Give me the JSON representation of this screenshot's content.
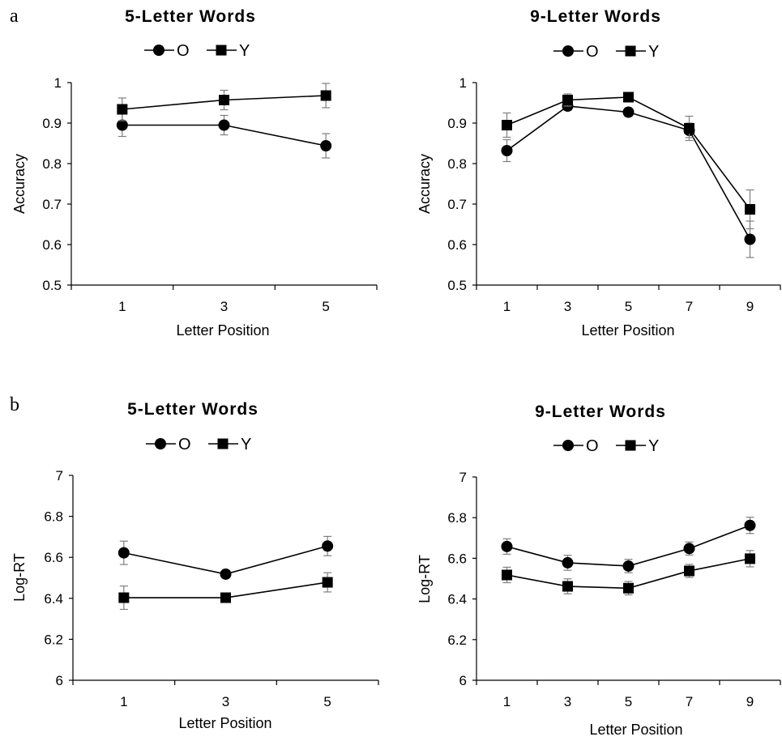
{
  "panel_labels": [
    "a",
    "b"
  ],
  "colors": {
    "ink": "#000000",
    "errorbar": "#7f7f7f",
    "axis": "#000000"
  },
  "chart_data": [
    {
      "type": "line",
      "panel": "a",
      "title": "5-Letter Words",
      "xlabel": "Letter Position",
      "ylabel": "Accuracy",
      "categories": [
        "1",
        "3",
        "5"
      ],
      "ylim": [
        0.5,
        1
      ],
      "yticks": [
        "0.5",
        "0.6",
        "0.7",
        "0.8",
        "0.9",
        "1"
      ],
      "legend_position": "top",
      "grid": false,
      "series": [
        {
          "name": "O",
          "marker": "circle",
          "values": [
            0.895,
            0.895,
            0.844
          ],
          "errors": [
            0.028,
            0.024,
            0.03
          ]
        },
        {
          "name": "Y",
          "marker": "square",
          "values": [
            0.934,
            0.957,
            0.968
          ],
          "errors": [
            0.028,
            0.024,
            0.03
          ]
        }
      ]
    },
    {
      "type": "line",
      "panel": "a",
      "title": "9-Letter Words",
      "xlabel": "Letter Position",
      "ylabel": "Accuracy",
      "categories": [
        "1",
        "3",
        "5",
        "7",
        "9"
      ],
      "ylim": [
        0.5,
        1
      ],
      "yticks": [
        "0.5",
        "0.6",
        "0.7",
        "0.8",
        "0.9",
        "1"
      ],
      "legend_position": "top",
      "grid": false,
      "series": [
        {
          "name": "O",
          "marker": "circle",
          "values": [
            0.832,
            0.942,
            0.927,
            0.882,
            0.613
          ],
          "errors": [
            0.027,
            0.01,
            0.01,
            0.018,
            0.045
          ]
        },
        {
          "name": "Y",
          "marker": "square",
          "values": [
            0.895,
            0.957,
            0.964,
            0.887,
            0.687
          ],
          "errors": [
            0.03,
            0.015,
            0.01,
            0.03,
            0.048
          ]
        }
      ]
    },
    {
      "type": "line",
      "panel": "b",
      "title": "5-Letter Words",
      "xlabel": "Letter Position",
      "ylabel": "Log-RT",
      "categories": [
        "1",
        "3",
        "5"
      ],
      "ylim": [
        6,
        7
      ],
      "yticks": [
        "6",
        "6.2",
        "6.4",
        "6.6",
        "6.8",
        "7"
      ],
      "legend_position": "top",
      "grid": false,
      "series": [
        {
          "name": "O",
          "marker": "circle",
          "values": [
            6.622,
            6.518,
            6.655
          ],
          "errors": [
            0.057,
            0.018,
            0.047
          ]
        },
        {
          "name": "Y",
          "marker": "square",
          "values": [
            6.403,
            6.403,
            6.478
          ],
          "errors": [
            0.057,
            0.012,
            0.047
          ]
        }
      ]
    },
    {
      "type": "line",
      "panel": "b",
      "title": "9-Letter Words",
      "xlabel": "Letter Position",
      "ylabel": "Log-RT",
      "categories": [
        "1",
        "3",
        "5",
        "7",
        "9"
      ],
      "ylim": [
        6,
        7
      ],
      "yticks": [
        "6",
        "6.2",
        "6.4",
        "6.6",
        "6.8",
        "7"
      ],
      "legend_position": "top",
      "grid": false,
      "series": [
        {
          "name": "O",
          "marker": "circle",
          "values": [
            6.658,
            6.578,
            6.562,
            6.648,
            6.762
          ],
          "errors": [
            0.038,
            0.037,
            0.033,
            0.032,
            0.04
          ]
        },
        {
          "name": "Y",
          "marker": "square",
          "values": [
            6.518,
            6.462,
            6.453,
            6.538,
            6.598
          ],
          "errors": [
            0.038,
            0.037,
            0.033,
            0.032,
            0.04
          ]
        }
      ]
    }
  ]
}
